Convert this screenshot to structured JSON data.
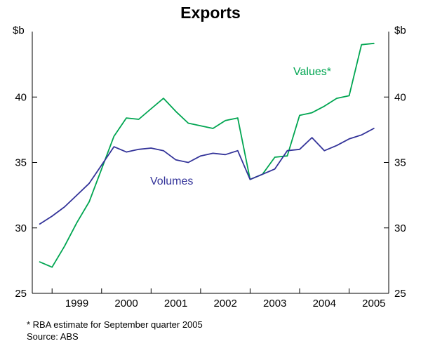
{
  "title": "Exports",
  "footnote": "* RBA estimate for September quarter 2005",
  "source": "Source: ABS",
  "axis_units": {
    "left": "$b",
    "right": "$b"
  },
  "chart_data": {
    "type": "line",
    "title": "Exports",
    "ylabel": "$b",
    "ylim": [
      25,
      45
    ],
    "yticks": [
      25,
      30,
      35,
      40
    ],
    "xticks": [
      1999,
      2000,
      2001,
      2002,
      2003,
      2004,
      2005
    ],
    "x_tick_labels": [
      "1999",
      "2000",
      "2001",
      "2002",
      "2003",
      "2004",
      "2005"
    ],
    "x_start": 1998.75,
    "x_step": 0.25,
    "periods": [
      "1998Q4",
      "1999Q1",
      "1999Q2",
      "1999Q3",
      "1999Q4",
      "2000Q1",
      "2000Q2",
      "2000Q3",
      "2000Q4",
      "2001Q1",
      "2001Q2",
      "2001Q3",
      "2001Q4",
      "2002Q1",
      "2002Q2",
      "2002Q3",
      "2002Q4",
      "2003Q1",
      "2003Q2",
      "2003Q3",
      "2003Q4",
      "2004Q1",
      "2004Q2",
      "2004Q3",
      "2004Q4",
      "2005Q1",
      "2005Q2",
      "2005Q3"
    ],
    "series": [
      {
        "name": "Values*",
        "color": "#00a551",
        "values": [
          27.4,
          27.0,
          28.6,
          30.4,
          32.0,
          34.5,
          37.0,
          38.4,
          38.3,
          39.1,
          39.9,
          38.9,
          38.0,
          37.8,
          37.6,
          38.2,
          38.4,
          33.7,
          34.1,
          35.4,
          35.5,
          38.6,
          38.8,
          39.3,
          39.9,
          40.1,
          44.0,
          44.1
        ]
      },
      {
        "name": "Volumes",
        "color": "#333399",
        "values": [
          30.3,
          30.9,
          31.6,
          32.5,
          33.4,
          34.8,
          36.2,
          35.8,
          36.0,
          36.1,
          35.9,
          35.2,
          35.0,
          35.5,
          35.7,
          35.6,
          35.9,
          33.7,
          34.1,
          34.5,
          35.9,
          36.0,
          36.9,
          35.9,
          36.3,
          36.8,
          37.1,
          37.6
        ]
      }
    ],
    "legend_position": "inline-annotations",
    "grid": false
  }
}
